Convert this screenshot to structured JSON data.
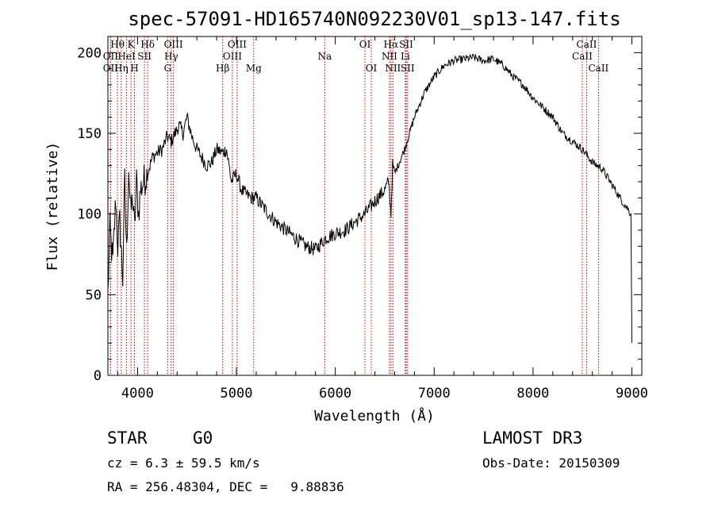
{
  "chart_data": {
    "type": "line",
    "title": "spec-57091-HD165740N092230V01_sp13-147.fits",
    "xlabel": "Wavelength (Å)",
    "ylabel": "Flux (relative)",
    "xlim": [
      3700,
      9100
    ],
    "ylim": [
      0,
      210
    ],
    "xticks": [
      4000,
      5000,
      6000,
      7000,
      8000,
      9000
    ],
    "yticks": [
      0,
      50,
      100,
      150,
      200
    ],
    "series": [
      {
        "name": "flux",
        "x": [
          3700,
          3720,
          3750,
          3780,
          3800,
          3820,
          3850,
          3870,
          3890,
          3910,
          3930,
          3950,
          3970,
          3990,
          4010,
          4030,
          4060,
          4100,
          4150,
          4200,
          4250,
          4300,
          4340,
          4380,
          4420,
          4460,
          4500,
          4550,
          4600,
          4650,
          4700,
          4750,
          4800,
          4860,
          4900,
          4950,
          5000,
          5050,
          5100,
          5150,
          5200,
          5300,
          5400,
          5500,
          5600,
          5700,
          5800,
          5900,
          6000,
          6100,
          6200,
          6300,
          6400,
          6500,
          6540,
          6563,
          6580,
          6600,
          6700,
          6800,
          6900,
          7000,
          7100,
          7200,
          7300,
          7400,
          7500,
          7600,
          7700,
          7800,
          7900,
          8000,
          8100,
          8200,
          8300,
          8400,
          8500,
          8600,
          8700,
          8800,
          8900,
          8950,
          8990,
          9000
        ],
        "y": [
          50,
          90,
          70,
          110,
          80,
          95,
          60,
          120,
          75,
          130,
          100,
          110,
          90,
          120,
          100,
          115,
          120,
          125,
          135,
          138,
          140,
          148,
          145,
          150,
          155,
          150,
          160,
          148,
          140,
          135,
          130,
          132,
          140,
          138,
          140,
          120,
          125,
          115,
          112,
          110,
          110,
          102,
          95,
          90,
          85,
          80,
          78,
          85,
          88,
          90,
          95,
          100,
          108,
          115,
          120,
          100,
          130,
          125,
          140,
          160,
          175,
          185,
          192,
          195,
          196,
          197,
          195,
          196,
          192,
          185,
          180,
          172,
          166,
          160,
          150,
          145,
          140,
          132,
          128,
          118,
          108,
          104,
          100,
          20
        ]
      }
    ],
    "spectral_lines": [
      {
        "label": "OII",
        "x": 3727,
        "row": 2
      },
      {
        "label": "Hθ",
        "x": 3797,
        "row": 0
      },
      {
        "label": "OII",
        "x": 3727,
        "row": 1
      },
      {
        "label": "Hη",
        "x": 3835,
        "row": 2
      },
      {
        "label": "HeI",
        "x": 3889,
        "row": 1
      },
      {
        "label": "K",
        "x": 3934,
        "row": 0
      },
      {
        "label": "H",
        "x": 3969,
        "row": 2
      },
      {
        "label": "SII",
        "x": 4070,
        "row": 1
      },
      {
        "label": "Hδ",
        "x": 4102,
        "row": 0
      },
      {
        "label": "OIII",
        "x": 4363,
        "row": 0
      },
      {
        "label": "Hγ",
        "x": 4340,
        "row": 1
      },
      {
        "label": "G",
        "x": 4305,
        "row": 2
      },
      {
        "label": "Hβ",
        "x": 4861,
        "row": 2
      },
      {
        "label": "OIII",
        "x": 5007,
        "row": 0
      },
      {
        "label": "OIII",
        "x": 4959,
        "row": 1
      },
      {
        "label": "Mg",
        "x": 5175,
        "row": 2
      },
      {
        "label": "Na",
        "x": 5893,
        "row": 1
      },
      {
        "label": "OI",
        "x": 6300,
        "row": 0
      },
      {
        "label": "OI",
        "x": 6364,
        "row": 2
      },
      {
        "label": "Hα",
        "x": 6563,
        "row": 0
      },
      {
        "label": "NII",
        "x": 6548,
        "row": 1
      },
      {
        "label": "NII",
        "x": 6583,
        "row": 2
      },
      {
        "label": "SII",
        "x": 6717,
        "row": 0
      },
      {
        "label": "Li",
        "x": 6708,
        "row": 1
      },
      {
        "label": "SII",
        "x": 6731,
        "row": 2
      },
      {
        "label": "CaII",
        "x": 8542,
        "row": 0
      },
      {
        "label": "CaII",
        "x": 8498,
        "row": 1
      },
      {
        "label": "CaII",
        "x": 8662,
        "row": 2
      }
    ]
  },
  "info": {
    "object_class": "STAR",
    "subclass": "G0",
    "survey": "LAMOST DR3",
    "cz": "cz = 6.3 ± 59.5 km/s",
    "obs_date": "Obs-Date: 20150309",
    "coords": "RA = 256.48304, DEC =   9.88836"
  }
}
